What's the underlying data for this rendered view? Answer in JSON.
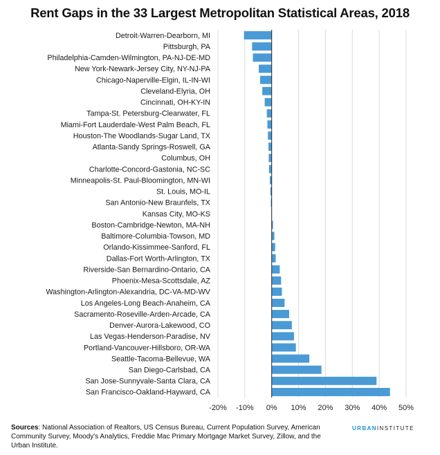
{
  "title": "Rent Gaps in the 33 Largest Metropolitan Statistical Areas, 2018",
  "sources_label": "Sources",
  "sources_text": ": National Association of Realtors, US Census Bureau, Current Population Survey, American Community Survey, Moody's Analytics, Freddie Mac Primary Mortgage Market Survey, Zillow, and the Urban Institute.",
  "brand": {
    "part1": "URBAN",
    "part2": "INSTITUTE"
  },
  "colors": {
    "bar": "#4a9ad6",
    "grid": "#d9d9d9",
    "axis": "#222222",
    "brand_accent": "#1696d2"
  },
  "chart_data": {
    "type": "bar",
    "orientation": "horizontal",
    "categories": [
      "Detroit-Warren-Dearborn, MI",
      "Pittsburgh, PA",
      "Philadelphia-Camden-Wilmington, PA-NJ-DE-MD",
      "New York-Newark-Jersey City, NY-NJ-PA",
      "Chicago-Naperville-Elgin, IL-IN-WI",
      "Cleveland-Elyria, OH",
      "Cincinnati, OH-KY-IN",
      "Tampa-St. Petersburg-Clearwater, FL",
      "Miami-Fort Lauderdale-West Palm Beach, FL",
      "Houston-The Woodlands-Sugar Land, TX",
      "Atlanta-Sandy Springs-Roswell, GA",
      "Columbus, OH",
      "Charlotte-Concord-Gastonia, NC-SC",
      "Minneapolis-St. Paul-Bloomington, MN-WI",
      "St. Louis, MO-IL",
      "San Antonio-New Braunfels, TX",
      "Kansas City, MO-KS",
      "Boston-Cambridge-Newton, MA-NH",
      "Baltimore-Columbia-Towson, MD",
      "Orlando-Kissimmee-Sanford, FL",
      "Dallas-Fort Worth-Arlington, TX",
      "Riverside-San Bernardino-Ontario, CA",
      "Phoenix-Mesa-Scottsdale, AZ",
      "Washington-Arlington-Alexandria, DC-VA-MD-WV",
      "Los Angeles-Long Beach-Anaheim, CA",
      "Sacramento-Roseville-Arden-Arcade, CA",
      "Denver-Aurora-Lakewood, CO",
      "Las Vegas-Henderson-Paradise, NV",
      "Portland-Vancouver-Hillsboro, OR-WA",
      "Seattle-Tacoma-Bellevue, WA",
      "San Diego-Carlsbad, CA",
      "San Jose-Sunnyvale-Santa Clara, CA",
      "San Francisco-Oakland-Hayward, CA"
    ],
    "values": [
      -10.3,
      -7.3,
      -7.0,
      -4.8,
      -4.3,
      -3.5,
      -2.6,
      -1.8,
      -1.6,
      -1.4,
      -1.2,
      -1.1,
      -1.0,
      -0.7,
      -0.5,
      -0.3,
      -0.1,
      0.5,
      1.0,
      1.3,
      1.5,
      3.0,
      3.5,
      3.8,
      4.8,
      6.5,
      7.5,
      8.3,
      9.0,
      14.0,
      18.5,
      39.0,
      44.0
    ],
    "xlim": [
      -20,
      50
    ],
    "xticks": [
      "-20%",
      "-10%",
      "0%",
      "10%",
      "20%",
      "30%",
      "40%",
      "50%"
    ],
    "grid": true
  }
}
